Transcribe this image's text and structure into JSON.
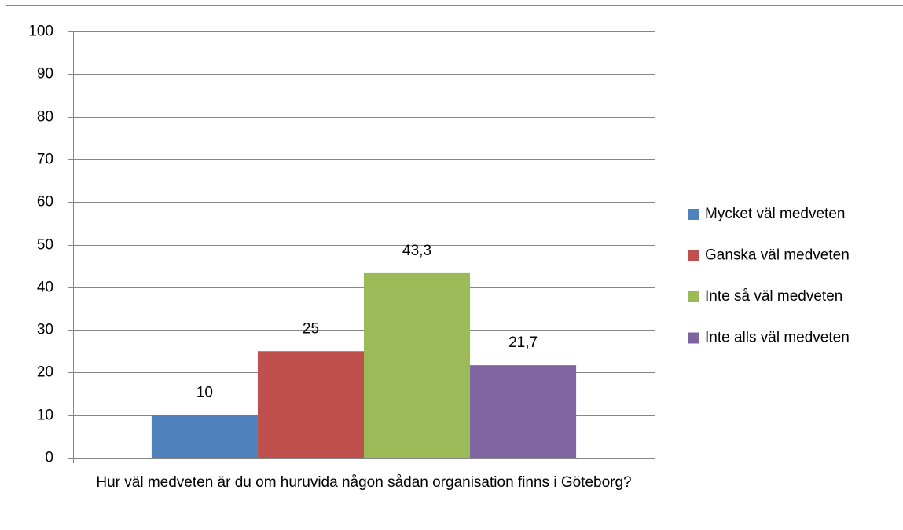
{
  "chart_data": {
    "type": "bar",
    "categories": [
      "Hur väl medveten är du om huruvida någon sådan organisation finns i Göteborg?"
    ],
    "series": [
      {
        "name": "Mycket väl medveten",
        "color": "#4f81bd",
        "values": [
          10
        ]
      },
      {
        "name": "Ganska väl medveten",
        "color": "#c0504d",
        "values": [
          25
        ]
      },
      {
        "name": "Inte så väl medveten",
        "color": "#9bbb59",
        "values": [
          43.3
        ],
        "value_labels": [
          "43,3"
        ]
      },
      {
        "name": "Inte alls väl medveten",
        "color": "#8064a2",
        "values": [
          21.7
        ],
        "value_labels": [
          "21,7"
        ]
      }
    ],
    "ylim": [
      0,
      100
    ],
    "yticks": [
      0,
      10,
      20,
      30,
      40,
      50,
      60,
      70,
      80,
      90,
      100
    ],
    "grid": true,
    "legend": "right"
  }
}
